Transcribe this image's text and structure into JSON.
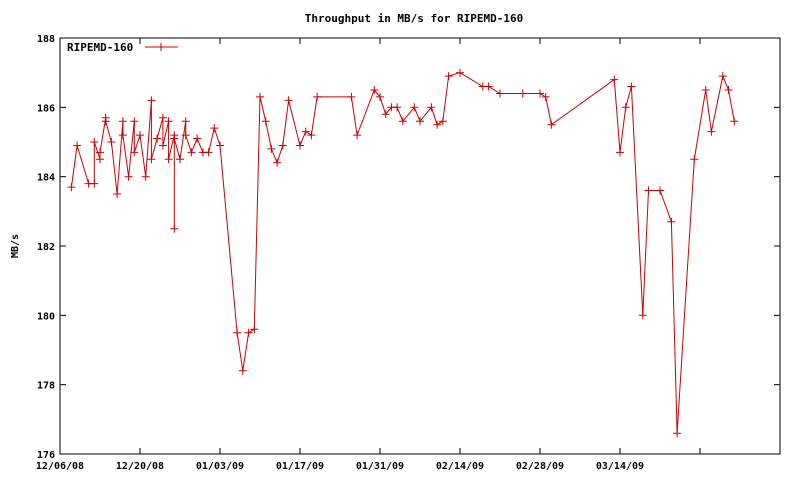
{
  "chart_data": {
    "type": "line",
    "title": "Throughput in MB/s for RIPEMD-160",
    "ylabel": "MB/s",
    "xlabel": "",
    "ylim": [
      176,
      188
    ],
    "yticks": [
      176,
      178,
      180,
      182,
      184,
      186,
      188
    ],
    "xlim": [
      "2008-12-06",
      "2009-04-08"
    ],
    "xticks": [
      {
        "date": "2008-12-06",
        "label": "12/06/08"
      },
      {
        "date": "2008-12-20",
        "label": "12/20/08"
      },
      {
        "date": "2009-01-03",
        "label": "01/03/09"
      },
      {
        "date": "2009-01-17",
        "label": "01/17/09"
      },
      {
        "date": "2009-01-31",
        "label": "01/31/09"
      },
      {
        "date": "2009-02-14",
        "label": "02/14/09"
      },
      {
        "date": "2009-02-28",
        "label": "02/28/09"
      },
      {
        "date": "2009-03-14",
        "label": "03/14/09"
      },
      {
        "date": "2009-03-28",
        "label": ""
      }
    ],
    "grid": false,
    "legend_position": "top-left",
    "series": [
      {
        "name": "RIPEMD-160",
        "color": "#cc0000",
        "marker": "plus",
        "points": [
          [
            "2008-12-08",
            183.7
          ],
          [
            "2008-12-09",
            184.9
          ],
          [
            "2008-12-11",
            183.8
          ],
          [
            "2008-12-12",
            183.8
          ],
          [
            "2008-12-12",
            185.0
          ],
          [
            "2008-12-13",
            184.5
          ],
          [
            "2008-12-13",
            184.7
          ],
          [
            "2008-12-14",
            185.7
          ],
          [
            "2008-12-14",
            185.6
          ],
          [
            "2008-12-15",
            185.0
          ],
          [
            "2008-12-16",
            183.5
          ],
          [
            "2008-12-17",
            185.6
          ],
          [
            "2008-12-17",
            185.2
          ],
          [
            "2008-12-18",
            184.0
          ],
          [
            "2008-12-19",
            185.6
          ],
          [
            "2008-12-19",
            184.7
          ],
          [
            "2008-12-20",
            185.2
          ],
          [
            "2008-12-21",
            184.0
          ],
          [
            "2008-12-22",
            186.2
          ],
          [
            "2008-12-22",
            184.5
          ],
          [
            "2008-12-23",
            185.1
          ],
          [
            "2008-12-24",
            185.7
          ],
          [
            "2008-12-24",
            184.9
          ],
          [
            "2008-12-25",
            185.6
          ],
          [
            "2008-12-25",
            184.5
          ],
          [
            "2008-12-26",
            185.2
          ],
          [
            "2008-12-26",
            182.5
          ],
          [
            "2008-12-26",
            185.1
          ],
          [
            "2008-12-27",
            184.5
          ],
          [
            "2008-12-28",
            185.6
          ],
          [
            "2008-12-28",
            185.2
          ],
          [
            "2008-12-29",
            184.7
          ],
          [
            "2008-12-30",
            185.1
          ],
          [
            "2008-12-31",
            184.7
          ],
          [
            "2009-01-01",
            184.7
          ],
          [
            "2009-01-02",
            185.4
          ],
          [
            "2009-01-03",
            184.9
          ],
          [
            "2009-01-06",
            179.5
          ],
          [
            "2009-01-07",
            178.4
          ],
          [
            "2009-01-08",
            179.5
          ],
          [
            "2009-01-09",
            179.6
          ],
          [
            "2009-01-10",
            186.3
          ],
          [
            "2009-01-11",
            185.6
          ],
          [
            "2009-01-12",
            184.8
          ],
          [
            "2009-01-13",
            184.4
          ],
          [
            "2009-01-14",
            184.9
          ],
          [
            "2009-01-15",
            186.2
          ],
          [
            "2009-01-17",
            184.9
          ],
          [
            "2009-01-18",
            185.3
          ],
          [
            "2009-01-19",
            185.2
          ],
          [
            "2009-01-20",
            186.3
          ],
          [
            "2009-01-26",
            186.3
          ],
          [
            "2009-01-27",
            185.2
          ],
          [
            "2009-01-30",
            186.5
          ],
          [
            "2009-01-31",
            186.3
          ],
          [
            "2009-02-01",
            185.8
          ],
          [
            "2009-02-02",
            186.0
          ],
          [
            "2009-02-03",
            186.0
          ],
          [
            "2009-02-04",
            185.6
          ],
          [
            "2009-02-06",
            186.0
          ],
          [
            "2009-02-07",
            185.6
          ],
          [
            "2009-02-09",
            186.0
          ],
          [
            "2009-02-10",
            185.5
          ],
          [
            "2009-02-11",
            185.6
          ],
          [
            "2009-02-12",
            186.9
          ],
          [
            "2009-02-14",
            187.0
          ],
          [
            "2009-02-18",
            186.6
          ],
          [
            "2009-02-19",
            186.6
          ],
          [
            "2009-02-21",
            186.4
          ],
          [
            "2009-02-25",
            186.4
          ],
          [
            "2009-02-28",
            186.4
          ],
          [
            "2009-03-01",
            186.3
          ],
          [
            "2009-03-02",
            185.5
          ],
          [
            "2009-03-13",
            186.8
          ],
          [
            "2009-03-14",
            184.7
          ],
          [
            "2009-03-15",
            186.0
          ],
          [
            "2009-03-16",
            186.6
          ],
          [
            "2009-03-18",
            180.0
          ],
          [
            "2009-03-19",
            183.6
          ],
          [
            "2009-03-21",
            183.6
          ],
          [
            "2009-03-23",
            182.7
          ],
          [
            "2009-03-24",
            176.6
          ],
          [
            "2009-03-27",
            184.5
          ],
          [
            "2009-03-29",
            186.5
          ],
          [
            "2009-03-30",
            185.3
          ],
          [
            "2009-04-01",
            186.9
          ],
          [
            "2009-04-02",
            186.5
          ],
          [
            "2009-04-03",
            185.6
          ]
        ]
      }
    ]
  }
}
